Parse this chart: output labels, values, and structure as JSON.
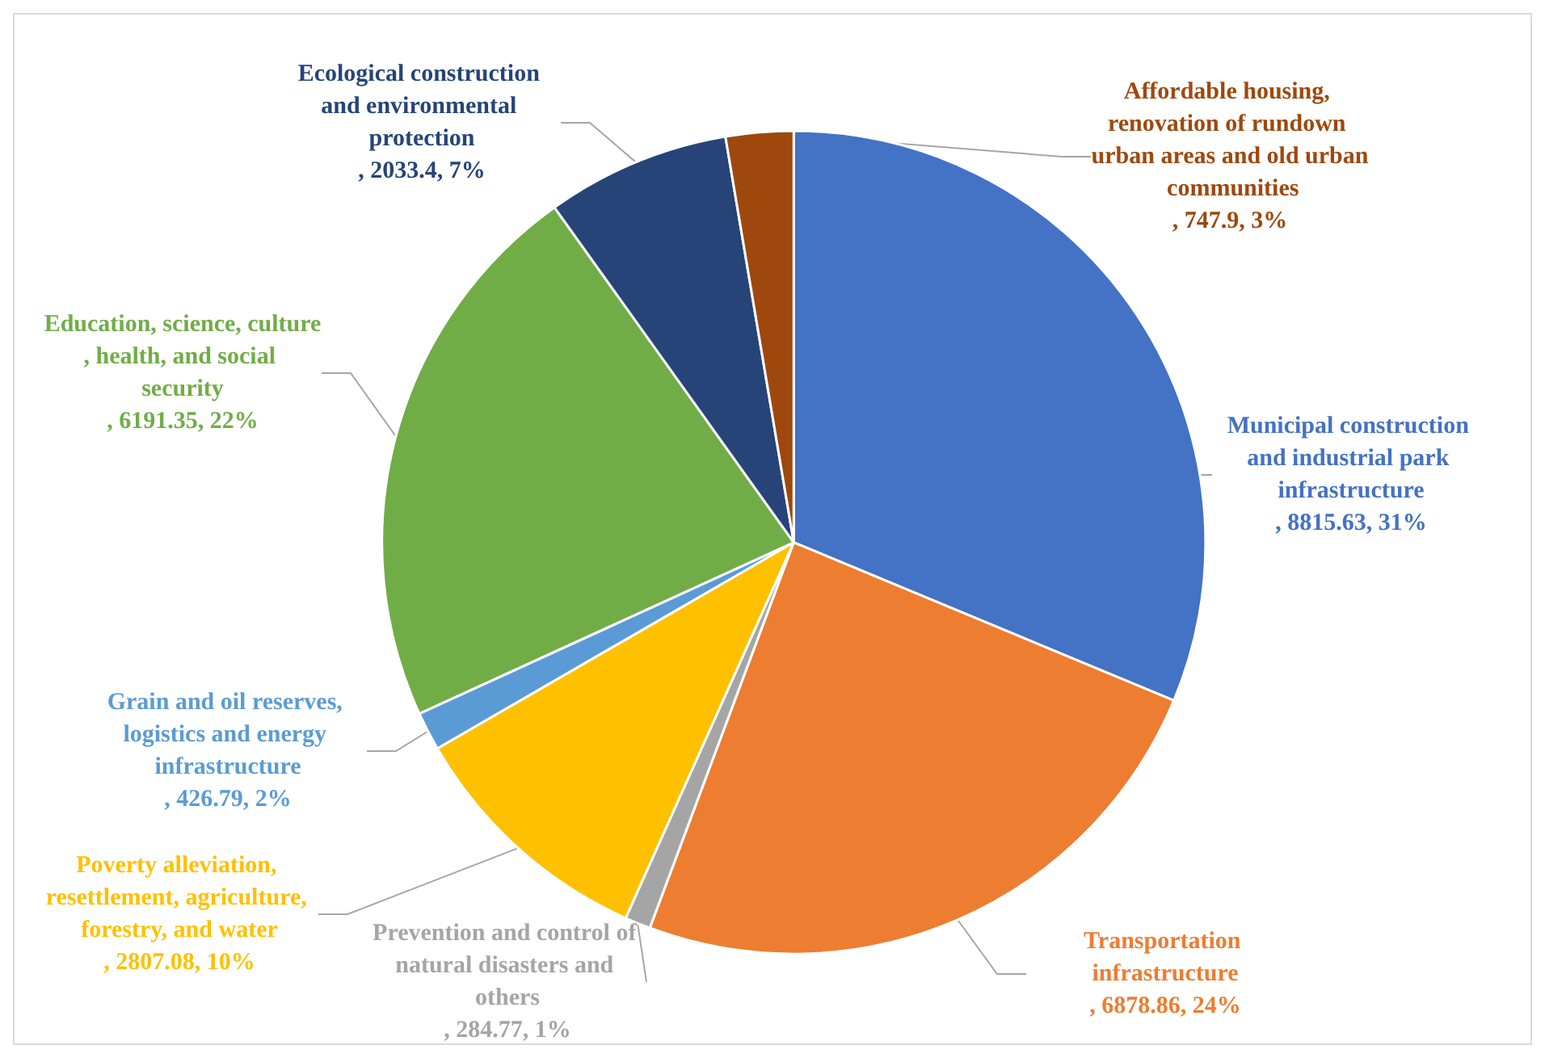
{
  "chart_data": {
    "type": "pie",
    "categories": [
      "Municipal construction and industrial park infrastructure",
      "Transportation infrastructure",
      "Prevention and control of natural disasters and others",
      "Poverty alleviation, resettlement, agriculture, forestry, and water",
      "Grain and oil reserves, logistics and energy infrastructure",
      "Education, science, culture, health, and social security",
      "Ecological construction and environmental protection",
      "Affordable housing, renovation of rundown urban areas and old urban communities"
    ],
    "values": [
      8815.63,
      6878.86,
      284.77,
      2807.08,
      426.79,
      6191.35,
      2033.4,
      747.9
    ],
    "colors": [
      "#4472c4",
      "#ed7d31",
      "#a5a5a5",
      "#ffc000",
      "#5b9bd5",
      "#70ad47",
      "#264478",
      "#9e480e"
    ],
    "value_labels": [
      ", 8815.63, 31%",
      ", 6878.86, 24%",
      ", 284.77, 1%",
      ", 2807.08, 10%",
      ", 426.79, 2%",
      ", 6191.35, 22%",
      ", 2033.4, 7%",
      ", 747.9, 3%"
    ],
    "legend": false
  }
}
